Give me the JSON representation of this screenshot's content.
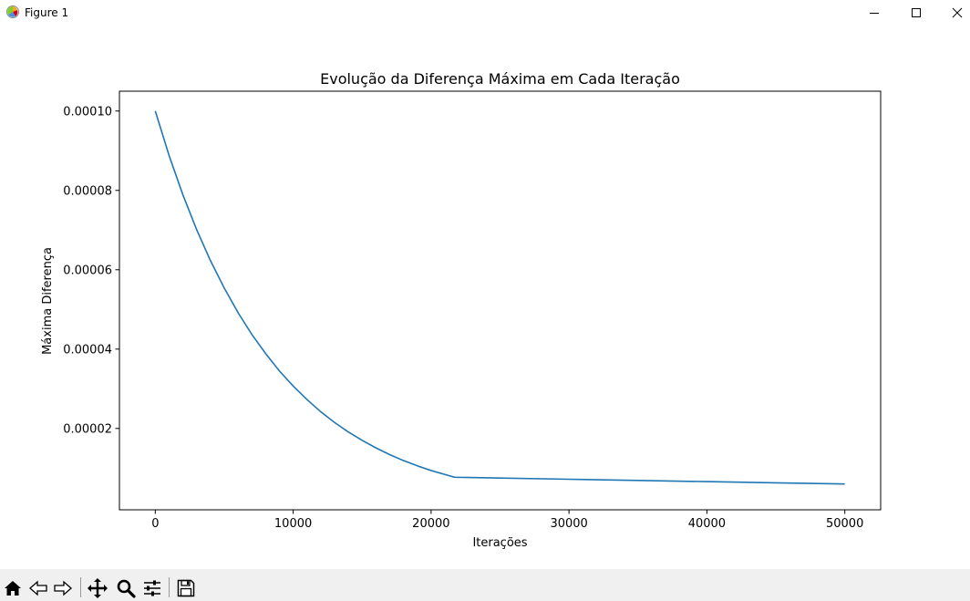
{
  "window": {
    "title": "Figure 1",
    "app_icon": "matplotlib-figure-icon",
    "controls": [
      "minimize-icon",
      "maximize-icon",
      "close-icon"
    ]
  },
  "toolbar": {
    "tools": [
      "home-icon",
      "back-arrow-icon",
      "forward-arrow-icon",
      "pan-move-icon",
      "zoom-magnifier-icon",
      "subplots-config-icon",
      "save-floppy-icon"
    ]
  },
  "chart_data": {
    "type": "line",
    "title": "Evolução da Diferença Máxima em Cada Iteração",
    "xlabel": "Iterações",
    "ylabel": "Máxima Diferença",
    "xlim": [
      -2600,
      52600
    ],
    "ylim": [
      -5e-07,
      0.000105
    ],
    "xticks": [
      0,
      10000,
      20000,
      30000,
      40000,
      50000
    ],
    "xtick_labels": [
      "0",
      "10000",
      "20000",
      "30000",
      "40000",
      "50000"
    ],
    "yticks": [
      2e-05,
      4e-05,
      6e-05,
      8e-05,
      0.0001
    ],
    "ytick_labels": [
      "0.00002",
      "0.00004",
      "0.00006",
      "0.00008",
      "0.00010"
    ],
    "grid": false,
    "line_color": "#1f77b4",
    "series": [
      {
        "x": [
          0,
          1000,
          2000,
          3000,
          4000,
          5000,
          6000,
          7000,
          8000,
          9000,
          10000,
          11000,
          12000,
          13000,
          14000,
          15000,
          16000,
          17000,
          18000,
          19000,
          20000,
          21000,
          21700,
          25000,
          30000,
          35000,
          40000,
          45000,
          50000
        ],
        "y": [
          0.0001,
          8.88e-05,
          7.89e-05,
          7.01e-05,
          6.23e-05,
          5.54e-05,
          4.92e-05,
          4.37e-05,
          3.89e-05,
          3.45e-05,
          3.07e-05,
          2.73e-05,
          2.42e-05,
          2.15e-05,
          1.91e-05,
          1.7e-05,
          1.51e-05,
          1.34e-05,
          1.19e-05,
          1.06e-05,
          9.4e-06,
          8.4e-06,
          7.7e-06,
          7.5e-06,
          7.2e-06,
          6.9e-06,
          6.6e-06,
          6.3e-06,
          6e-06
        ]
      }
    ]
  }
}
